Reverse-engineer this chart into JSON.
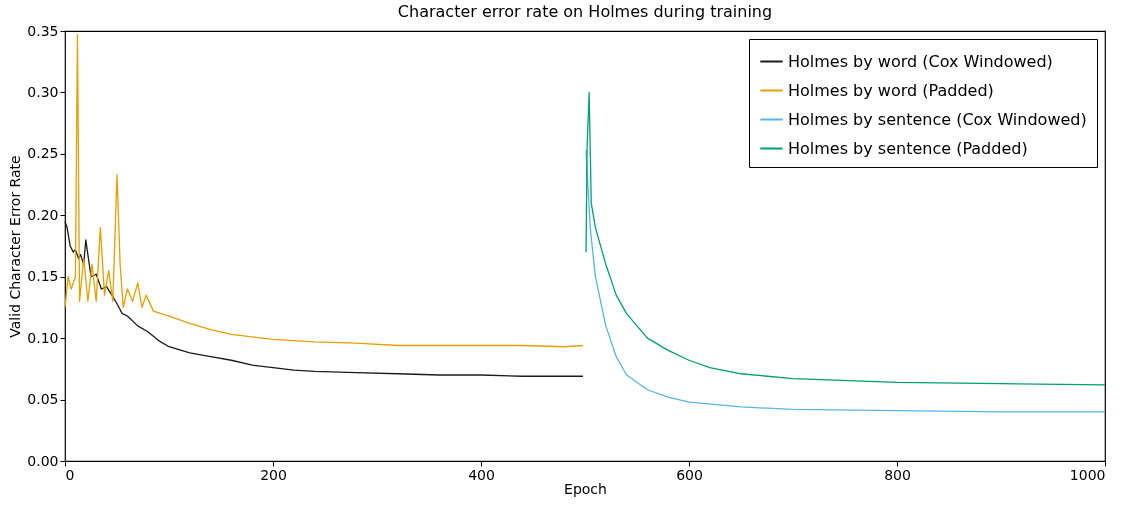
{
  "chart_data": {
    "type": "line",
    "title": "Character error rate on Holmes during training",
    "xlabel": "Epoch",
    "ylabel": "Valid Character Error Rate",
    "xlim": [
      0,
      1000
    ],
    "xticks": [
      0,
      200,
      400,
      600,
      800,
      1000
    ],
    "ylim": [
      0,
      0.35
    ],
    "yticks": [
      {
        "value": 0,
        "label": "0.00"
      },
      {
        "value": 0.05,
        "label": "0.05"
      },
      {
        "value": 0.1,
        "label": "0.10"
      },
      {
        "value": 0.15,
        "label": "0.15"
      },
      {
        "value": 0.2,
        "label": "0.20"
      },
      {
        "value": 0.25,
        "label": "0.25"
      },
      {
        "value": 0.3,
        "label": "0.30"
      },
      {
        "value": 0.35,
        "label": "0.35"
      }
    ],
    "grid": false,
    "legend": "top right",
    "marker": "none",
    "line_style": "solid",
    "series": [
      {
        "name": "Holmes by word (Cox Windowed)",
        "color": "#1a1a1a",
        "x": [
          0,
          2,
          5,
          8,
          10,
          13,
          15,
          18,
          20,
          25,
          30,
          35,
          40,
          45,
          50,
          55,
          60,
          70,
          80,
          90,
          100,
          120,
          140,
          160,
          180,
          200,
          220,
          240,
          280,
          320,
          360,
          400,
          440,
          480,
          498
        ],
        "values": [
          0.195,
          0.19,
          0.175,
          0.17,
          0.172,
          0.165,
          0.168,
          0.16,
          0.18,
          0.15,
          0.152,
          0.14,
          0.142,
          0.135,
          0.128,
          0.12,
          0.118,
          0.11,
          0.105,
          0.098,
          0.093,
          0.088,
          0.085,
          0.082,
          0.078,
          0.076,
          0.074,
          0.073,
          0.072,
          0.071,
          0.07,
          0.07,
          0.069,
          0.069,
          0.069
        ]
      },
      {
        "name": "Holmes by word (Padded)",
        "color": "#e69f00",
        "x": [
          0,
          3,
          6,
          10,
          12,
          14,
          18,
          22,
          26,
          30,
          34,
          38,
          42,
          46,
          50,
          53,
          56,
          60,
          65,
          70,
          74,
          78,
          85,
          100,
          120,
          140,
          160,
          200,
          240,
          280,
          320,
          360,
          400,
          440,
          480,
          498
        ],
        "values": [
          0.125,
          0.15,
          0.14,
          0.15,
          0.347,
          0.13,
          0.165,
          0.13,
          0.16,
          0.13,
          0.19,
          0.135,
          0.155,
          0.13,
          0.233,
          0.16,
          0.125,
          0.14,
          0.13,
          0.145,
          0.125,
          0.135,
          0.122,
          0.118,
          0.112,
          0.107,
          0.103,
          0.099,
          0.097,
          0.096,
          0.094,
          0.094,
          0.094,
          0.094,
          0.093,
          0.094
        ]
      },
      {
        "name": "Holmes by sentence (Cox Windowed)",
        "color": "#56b4e9",
        "x": [
          501,
          505,
          510,
          520,
          530,
          540,
          560,
          580,
          600,
          650,
          700,
          800,
          900,
          1000
        ],
        "values": [
          0.253,
          0.19,
          0.15,
          0.11,
          0.085,
          0.07,
          0.058,
          0.052,
          0.048,
          0.044,
          0.042,
          0.041,
          0.04,
          0.04
        ]
      },
      {
        "name": "Holmes by sentence (Padded)",
        "color": "#009e73",
        "x": [
          501,
          502,
          504,
          506,
          510,
          520,
          530,
          540,
          560,
          580,
          600,
          620,
          650,
          700,
          800,
          900,
          1000
        ],
        "values": [
          0.17,
          0.255,
          0.3,
          0.21,
          0.19,
          0.16,
          0.135,
          0.12,
          0.1,
          0.09,
          0.082,
          0.076,
          0.071,
          0.067,
          0.064,
          0.063,
          0.062
        ]
      }
    ]
  }
}
